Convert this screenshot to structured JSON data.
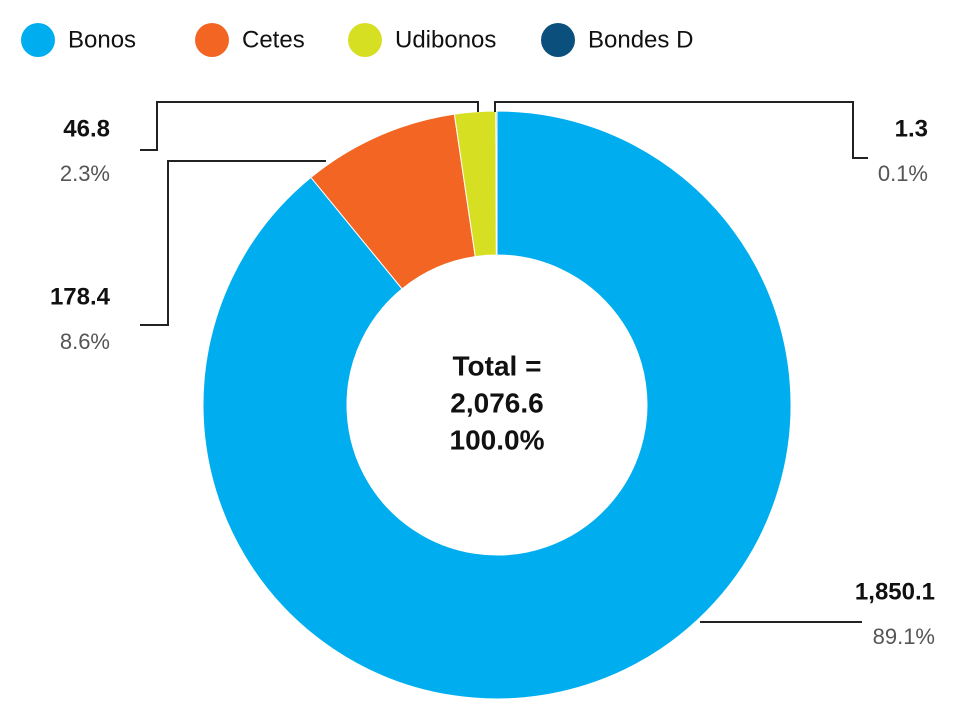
{
  "chart_data": {
    "type": "donut",
    "categories": [
      "Bonos",
      "Cetes",
      "Udibonos",
      "Bondes D"
    ],
    "colors": [
      "#00aeef",
      "#f26522",
      "#d7df23",
      "#0b4f7c"
    ],
    "values": [
      1850.1,
      178.4,
      46.8,
      1.3
    ],
    "value_labels": [
      "1,850.1",
      "178.4",
      "46.8",
      "1.3"
    ],
    "percentages": [
      89.1,
      8.6,
      2.3,
      0.1
    ],
    "percentage_labels": [
      "89.1%",
      "8.6%",
      "2.3%",
      "0.1%"
    ],
    "center_text": [
      "Total =",
      "2,076.6",
      "100.0%"
    ],
    "legend": "top"
  }
}
